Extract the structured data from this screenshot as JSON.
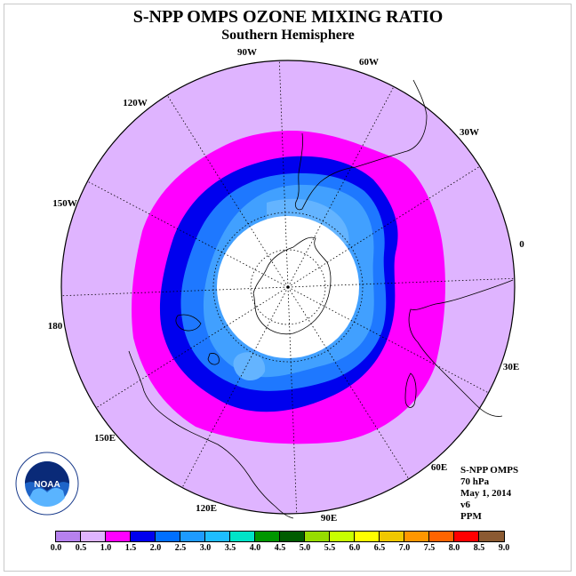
{
  "title": "S-NPP OMPS OZONE MIXING RATIO",
  "subtitle": "Southern Hemisphere",
  "longitude_labels": [
    "90W",
    "60W",
    "30W",
    "0",
    "30E",
    "60E",
    "90E",
    "120E",
    "150E",
    "180",
    "150W",
    "120W"
  ],
  "info": {
    "instrument": "S-NPP OMPS",
    "level": "70 hPa",
    "date": "May 1, 2014",
    "version": "v6",
    "units": "PPM"
  },
  "logo_text": "NOAA",
  "colorbar": {
    "ticks": [
      "0.0",
      "0.5",
      "1.0",
      "1.5",
      "2.0",
      "2.5",
      "3.0",
      "3.5",
      "4.0",
      "4.5",
      "5.0",
      "5.5",
      "6.0",
      "6.5",
      "7.0",
      "7.5",
      "8.0",
      "8.5",
      "9.0"
    ],
    "colors": [
      "#b681ee",
      "#dfb4ff",
      "#ff00ff",
      "#0000ee",
      "#006fff",
      "#1e9bff",
      "#1ebdff",
      "#00e4c8",
      "#009600",
      "#005c00",
      "#96dc00",
      "#c8ff00",
      "#ffff00",
      "#f0c800",
      "#ff9600",
      "#ff6400",
      "#ff0000",
      "#8b5a32"
    ]
  },
  "colors": {
    "low": "#dfb4ff",
    "mid": "#ff00ff",
    "band2": "#0000ee",
    "band25": "#1e78ff",
    "band3": "#41a0ff",
    "band35": "#64b4ff"
  }
}
